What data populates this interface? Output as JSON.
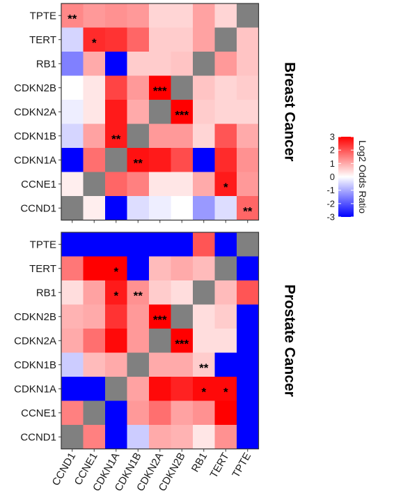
{
  "chart_data": [
    {
      "type": "heatmap",
      "panel_label": "Breast Cancer",
      "rows": [
        "TPTE",
        "TERT",
        "RB1",
        "CDKN2B",
        "CDKN2A",
        "CDKN1B",
        "CDKN1A",
        "CCNE1",
        "CCND1"
      ],
      "columns": [
        "CCND1",
        "CCNE1",
        "CDKN1A",
        "CDKN1B",
        "CDKN2A",
        "CDKN2B",
        "RB1",
        "TERT",
        "TPTE"
      ],
      "values": [
        [
          1.4,
          1.2,
          1.3,
          1.2,
          0.5,
          0.5,
          1.1,
          0.5,
          null
        ],
        [
          -0.5,
          2.5,
          2.4,
          1.8,
          0.6,
          0.6,
          1.1,
          null,
          0.7
        ],
        [
          -1.5,
          1.0,
          -3,
          0.6,
          0.6,
          0.7,
          null,
          1.2,
          0.7
        ],
        [
          0.0,
          0.3,
          2.2,
          1.2,
          3.0,
          null,
          0.7,
          0.5,
          0.6
        ],
        [
          -0.2,
          0.3,
          2.7,
          1.0,
          null,
          3.0,
          0.6,
          0.5,
          0.5
        ],
        [
          -0.5,
          1.1,
          2.7,
          null,
          1.2,
          1.2,
          0.5,
          2.0,
          1.0
        ],
        [
          -3,
          1.7,
          null,
          2.8,
          2.7,
          2.1,
          -3,
          2.5,
          1.3
        ],
        [
          0.2,
          null,
          1.8,
          1.5,
          0.3,
          0.3,
          1.0,
          2.7,
          1.2
        ],
        [
          null,
          0.2,
          -3,
          -0.4,
          -0.2,
          0.0,
          -1.2,
          -0.4,
          1.8
        ]
      ],
      "stars": [
        [
          "**",
          "",
          "",
          "",
          "",
          "",
          "",
          "",
          ""
        ],
        [
          "",
          "*",
          "",
          "",
          "",
          "",
          "",
          "",
          ""
        ],
        [
          "",
          "",
          "",
          "",
          "",
          "",
          "",
          "",
          ""
        ],
        [
          "",
          "",
          "",
          "",
          "***",
          "",
          "",
          "",
          ""
        ],
        [
          "",
          "",
          "",
          "",
          "",
          "***",
          "",
          "",
          ""
        ],
        [
          "",
          "",
          "**",
          "",
          "",
          "",
          "",
          "",
          ""
        ],
        [
          "",
          "",
          "",
          "**",
          "",
          "",
          "",
          "",
          ""
        ],
        [
          "",
          "",
          "",
          "",
          "",
          "",
          "",
          "*",
          ""
        ],
        [
          "",
          "",
          "",
          "",
          "",
          "",
          "",
          "",
          "**"
        ]
      ]
    },
    {
      "type": "heatmap",
      "panel_label": "Prostate Cancer",
      "rows": [
        "TPTE",
        "TERT",
        "RB1",
        "CDKN2B",
        "CDKN2A",
        "CDKN1B",
        "CDKN1A",
        "CCNE1",
        "CCND1"
      ],
      "columns": [
        "CCND1",
        "CCNE1",
        "CDKN1A",
        "CDKN1B",
        "CDKN2A",
        "CDKN2B",
        "RB1",
        "TERT",
        "TPTE"
      ],
      "values": [
        [
          -3,
          -3,
          -3,
          -3,
          -3,
          -3,
          2.0,
          -3,
          null
        ],
        [
          1.6,
          3.0,
          3.0,
          -3,
          0.8,
          1.0,
          0.8,
          null,
          -3
        ],
        [
          0.4,
          1.1,
          2.7,
          1.3,
          0.6,
          0.4,
          null,
          0.8,
          2.0
        ],
        [
          0.9,
          1.0,
          2.4,
          1.2,
          3.0,
          null,
          0.4,
          0.6,
          -3
        ],
        [
          1.0,
          1.7,
          2.9,
          1.2,
          null,
          3.0,
          0.4,
          0.4,
          -3
        ],
        [
          -0.6,
          0.8,
          1.0,
          null,
          1.0,
          1.0,
          0.6,
          -3,
          -3
        ],
        [
          -3,
          -3,
          null,
          1.1,
          2.9,
          2.6,
          2.9,
          2.9,
          -3
        ],
        [
          1.5,
          null,
          -3,
          1.2,
          1.7,
          1.1,
          1.3,
          3.0,
          -3
        ],
        [
          null,
          1.5,
          -3,
          -0.6,
          1.0,
          0.9,
          0.3,
          1.3,
          -3
        ]
      ],
      "stars": [
        [
          "",
          "",
          "",
          "",
          "",
          "",
          "",
          "",
          ""
        ],
        [
          "",
          "",
          "*",
          "",
          "",
          "",
          "",
          "",
          ""
        ],
        [
          "",
          "",
          "*",
          "**",
          "",
          "",
          "",
          "",
          ""
        ],
        [
          "",
          "",
          "",
          "",
          "***",
          "",
          "",
          "",
          ""
        ],
        [
          "",
          "",
          "",
          "",
          "",
          "***",
          "",
          "",
          ""
        ],
        [
          "",
          "",
          "",
          "",
          "",
          "",
          "**",
          "",
          ""
        ],
        [
          "",
          "",
          "",
          "",
          "",
          "",
          "*",
          "*",
          ""
        ],
        [
          "",
          "",
          "",
          "",
          "",
          "",
          "",
          "",
          ""
        ],
        [
          "",
          "",
          "",
          "",
          "",
          "",
          "",
          "",
          ""
        ]
      ]
    }
  ],
  "legend": {
    "title": "Log2 Odds Ratio",
    "ticks": [
      3,
      2,
      1,
      0,
      -1,
      -2,
      -3
    ],
    "low_color": "#0000ff",
    "mid_color": "#ffffff",
    "high_color": "#ff0000",
    "na_color": "#808080"
  }
}
